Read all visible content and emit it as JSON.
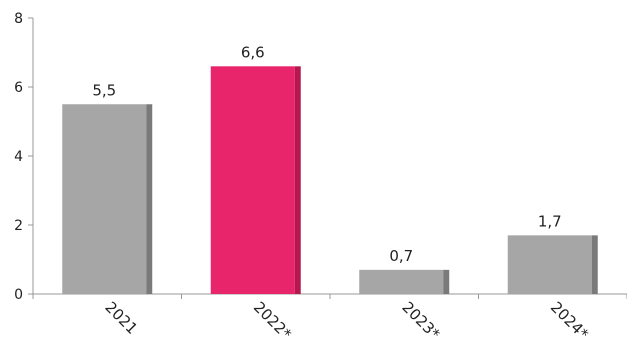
{
  "chart_data": {
    "type": "bar",
    "title": "",
    "xlabel": "",
    "ylabel": "",
    "categories": [
      "2021",
      "2022*",
      "2023*",
      "2024*"
    ],
    "values": [
      5.5,
      6.6,
      0.7,
      1.7
    ],
    "value_labels": [
      "5,5",
      "6,6",
      "0,7",
      "1,7"
    ],
    "ylim": [
      0,
      8
    ],
    "yticks": [
      0,
      2,
      4,
      6,
      8
    ],
    "ytick_labels": [
      "0",
      "2",
      "4",
      "6",
      "8"
    ],
    "grid": false,
    "legend": "none",
    "colors": {
      "default_bar": "#a6a6a6",
      "default_bar_side": "#7a7a7a",
      "highlight_bar": "#e8256a",
      "highlight_bar_side": "#b5174e",
      "axis": "#999999"
    },
    "highlight_index": 1
  }
}
